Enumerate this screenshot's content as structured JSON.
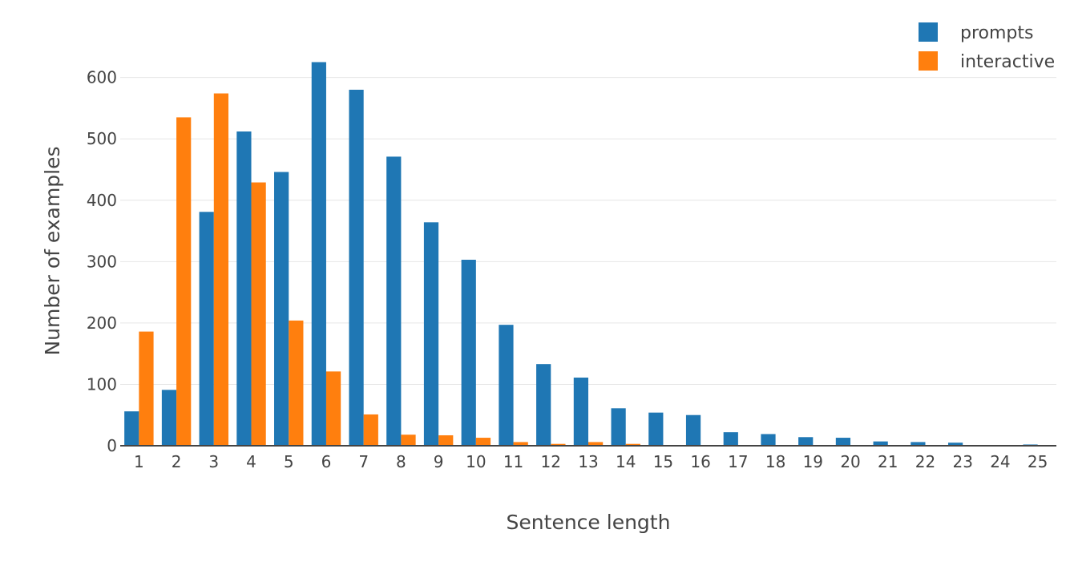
{
  "chart_data": {
    "type": "bar",
    "xlabel": "Sentence length",
    "ylabel": "Number of examples",
    "ylim": [
      0,
      640
    ],
    "yticks": [
      0,
      100,
      200,
      300,
      400,
      500,
      600
    ],
    "categories": [
      "1",
      "2",
      "3",
      "4",
      "5",
      "6",
      "7",
      "8",
      "9",
      "10",
      "11",
      "12",
      "13",
      "14",
      "15",
      "16",
      "17",
      "18",
      "19",
      "20",
      "21",
      "22",
      "23",
      "24",
      "25"
    ],
    "series": [
      {
        "name": "prompts",
        "color": "#1f77b4",
        "values": [
          56,
          91,
          381,
          512,
          446,
          625,
          580,
          471,
          364,
          303,
          197,
          133,
          111,
          61,
          54,
          50,
          22,
          19,
          14,
          13,
          7,
          6,
          5,
          1,
          2
        ]
      },
      {
        "name": "interactive",
        "color": "#ff7f0e",
        "values": [
          186,
          535,
          574,
          429,
          204,
          121,
          51,
          18,
          17,
          13,
          6,
          3,
          6,
          3,
          0,
          0,
          0,
          0,
          0,
          0,
          0,
          0,
          0,
          0,
          0
        ]
      }
    ],
    "grid": true,
    "legend": "top-right"
  }
}
